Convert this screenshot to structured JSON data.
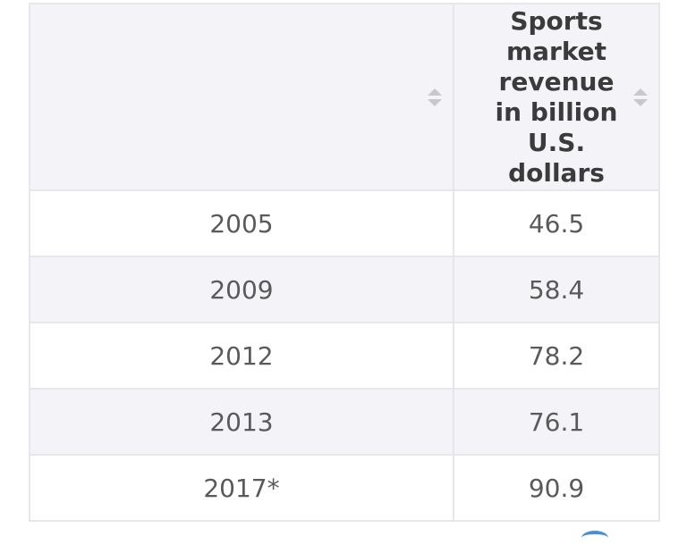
{
  "table": {
    "headers": [
      "",
      "Sports market revenue in billion U.S. dollars"
    ],
    "rows": [
      {
        "year": "2005",
        "value": "46.5"
      },
      {
        "year": "2009",
        "value": "58.4"
      },
      {
        "year": "2012",
        "value": "78.2"
      },
      {
        "year": "2013",
        "value": "76.1"
      },
      {
        "year": "2017*",
        "value": "90.9"
      }
    ]
  },
  "icons": {
    "sort": "sort-icon"
  },
  "colors": {
    "header_bg": "#f4f4f8",
    "stripe_bg": "#f4f4f8",
    "border": "#e6e6ec",
    "text": "#5a5a5a"
  },
  "chart_data": {
    "type": "table",
    "columns": [
      "",
      "Sports market revenue in billion U.S. dollars"
    ],
    "categories": [
      "2005",
      "2009",
      "2012",
      "2013",
      "2017*"
    ],
    "values": [
      46.5,
      58.4,
      78.2,
      76.1,
      90.9
    ]
  }
}
